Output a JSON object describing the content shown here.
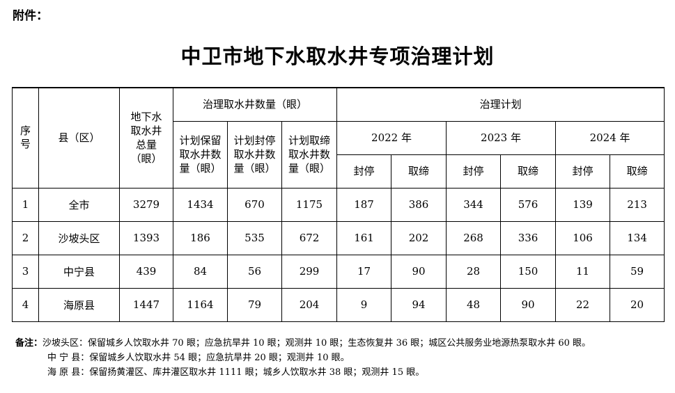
{
  "attachment_label": "附件：",
  "title": "中卫市地下水取水井专项治理计划",
  "table": {
    "headers": {
      "seq": "序号",
      "county": "县（区）",
      "total": "地下水取水井总量（眼）",
      "governance_group": "治理取水井数量（眼）",
      "retain": "计划保留取水井数量（眼）",
      "seal": "计划封停取水井数量（眼）",
      "ban": "计划取缔取水井数量（眼）",
      "plan_group": "治理计划",
      "years": [
        "2022 年",
        "2023 年",
        "2024 年"
      ],
      "sub": [
        "封停",
        "取缔",
        "封停",
        "取缔",
        "封停",
        "取缔"
      ]
    },
    "rows": [
      {
        "seq": "1",
        "county": "全市",
        "total": "3279",
        "retain": "1434",
        "seal": "670",
        "ban": "1175",
        "plan": [
          "187",
          "386",
          "344",
          "576",
          "139",
          "213"
        ]
      },
      {
        "seq": "2",
        "county": "沙坡头区",
        "total": "1393",
        "retain": "186",
        "seal": "535",
        "ban": "672",
        "plan": [
          "161",
          "202",
          "268",
          "336",
          "106",
          "134"
        ]
      },
      {
        "seq": "3",
        "county": "中宁县",
        "total": "439",
        "retain": "84",
        "seal": "56",
        "ban": "299",
        "plan": [
          "17",
          "90",
          "28",
          "150",
          "11",
          "59"
        ]
      },
      {
        "seq": "4",
        "county": "海原县",
        "total": "1447",
        "retain": "1164",
        "seal": "79",
        "ban": "204",
        "plan": [
          "9",
          "94",
          "48",
          "90",
          "22",
          "20"
        ]
      }
    ]
  },
  "notes": {
    "label": "备注：",
    "lines": [
      "沙坡头区：保留城乡人饮取水井 70 眼；应急抗旱井 10 眼；观测井 10 眼；生态恢复井 36 眼；城区公共服务业地源热泵取水井 60 眼。",
      "中 宁 县：保留城乡人饮取水井 54 眼；应急抗旱井 20 眼；观测井 10 眼。",
      "海 原 县：保留扬黄灌区、库井灌区取水井 1111 眼；城乡人饮取水井 38 眼；观测井 15 眼。"
    ]
  }
}
